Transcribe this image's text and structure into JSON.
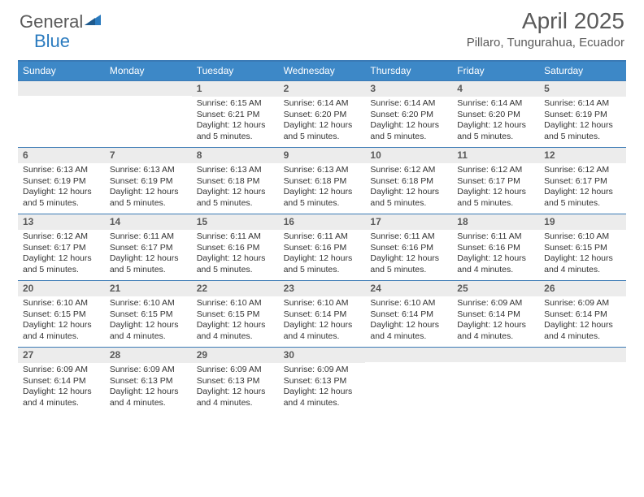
{
  "brand": {
    "part1": "General",
    "part2": "Blue"
  },
  "title": "April 2025",
  "location": "Pillaro, Tungurahua, Ecuador",
  "colors": {
    "header_bg": "#3d88c7",
    "border": "#3b7ab5",
    "daynum_bg": "#ececec",
    "text_muted": "#5a5a5a",
    "brand_blue": "#2b7bbf"
  },
  "weekdays": [
    "Sunday",
    "Monday",
    "Tuesday",
    "Wednesday",
    "Thursday",
    "Friday",
    "Saturday"
  ],
  "weeks": [
    [
      {
        "empty": true
      },
      {
        "empty": true
      },
      {
        "num": "1",
        "sunrise": "Sunrise: 6:15 AM",
        "sunset": "Sunset: 6:21 PM",
        "daylight": "Daylight: 12 hours and 5 minutes."
      },
      {
        "num": "2",
        "sunrise": "Sunrise: 6:14 AM",
        "sunset": "Sunset: 6:20 PM",
        "daylight": "Daylight: 12 hours and 5 minutes."
      },
      {
        "num": "3",
        "sunrise": "Sunrise: 6:14 AM",
        "sunset": "Sunset: 6:20 PM",
        "daylight": "Daylight: 12 hours and 5 minutes."
      },
      {
        "num": "4",
        "sunrise": "Sunrise: 6:14 AM",
        "sunset": "Sunset: 6:20 PM",
        "daylight": "Daylight: 12 hours and 5 minutes."
      },
      {
        "num": "5",
        "sunrise": "Sunrise: 6:14 AM",
        "sunset": "Sunset: 6:19 PM",
        "daylight": "Daylight: 12 hours and 5 minutes."
      }
    ],
    [
      {
        "num": "6",
        "sunrise": "Sunrise: 6:13 AM",
        "sunset": "Sunset: 6:19 PM",
        "daylight": "Daylight: 12 hours and 5 minutes."
      },
      {
        "num": "7",
        "sunrise": "Sunrise: 6:13 AM",
        "sunset": "Sunset: 6:19 PM",
        "daylight": "Daylight: 12 hours and 5 minutes."
      },
      {
        "num": "8",
        "sunrise": "Sunrise: 6:13 AM",
        "sunset": "Sunset: 6:18 PM",
        "daylight": "Daylight: 12 hours and 5 minutes."
      },
      {
        "num": "9",
        "sunrise": "Sunrise: 6:13 AM",
        "sunset": "Sunset: 6:18 PM",
        "daylight": "Daylight: 12 hours and 5 minutes."
      },
      {
        "num": "10",
        "sunrise": "Sunrise: 6:12 AM",
        "sunset": "Sunset: 6:18 PM",
        "daylight": "Daylight: 12 hours and 5 minutes."
      },
      {
        "num": "11",
        "sunrise": "Sunrise: 6:12 AM",
        "sunset": "Sunset: 6:17 PM",
        "daylight": "Daylight: 12 hours and 5 minutes."
      },
      {
        "num": "12",
        "sunrise": "Sunrise: 6:12 AM",
        "sunset": "Sunset: 6:17 PM",
        "daylight": "Daylight: 12 hours and 5 minutes."
      }
    ],
    [
      {
        "num": "13",
        "sunrise": "Sunrise: 6:12 AM",
        "sunset": "Sunset: 6:17 PM",
        "daylight": "Daylight: 12 hours and 5 minutes."
      },
      {
        "num": "14",
        "sunrise": "Sunrise: 6:11 AM",
        "sunset": "Sunset: 6:17 PM",
        "daylight": "Daylight: 12 hours and 5 minutes."
      },
      {
        "num": "15",
        "sunrise": "Sunrise: 6:11 AM",
        "sunset": "Sunset: 6:16 PM",
        "daylight": "Daylight: 12 hours and 5 minutes."
      },
      {
        "num": "16",
        "sunrise": "Sunrise: 6:11 AM",
        "sunset": "Sunset: 6:16 PM",
        "daylight": "Daylight: 12 hours and 5 minutes."
      },
      {
        "num": "17",
        "sunrise": "Sunrise: 6:11 AM",
        "sunset": "Sunset: 6:16 PM",
        "daylight": "Daylight: 12 hours and 5 minutes."
      },
      {
        "num": "18",
        "sunrise": "Sunrise: 6:11 AM",
        "sunset": "Sunset: 6:16 PM",
        "daylight": "Daylight: 12 hours and 4 minutes."
      },
      {
        "num": "19",
        "sunrise": "Sunrise: 6:10 AM",
        "sunset": "Sunset: 6:15 PM",
        "daylight": "Daylight: 12 hours and 4 minutes."
      }
    ],
    [
      {
        "num": "20",
        "sunrise": "Sunrise: 6:10 AM",
        "sunset": "Sunset: 6:15 PM",
        "daylight": "Daylight: 12 hours and 4 minutes."
      },
      {
        "num": "21",
        "sunrise": "Sunrise: 6:10 AM",
        "sunset": "Sunset: 6:15 PM",
        "daylight": "Daylight: 12 hours and 4 minutes."
      },
      {
        "num": "22",
        "sunrise": "Sunrise: 6:10 AM",
        "sunset": "Sunset: 6:15 PM",
        "daylight": "Daylight: 12 hours and 4 minutes."
      },
      {
        "num": "23",
        "sunrise": "Sunrise: 6:10 AM",
        "sunset": "Sunset: 6:14 PM",
        "daylight": "Daylight: 12 hours and 4 minutes."
      },
      {
        "num": "24",
        "sunrise": "Sunrise: 6:10 AM",
        "sunset": "Sunset: 6:14 PM",
        "daylight": "Daylight: 12 hours and 4 minutes."
      },
      {
        "num": "25",
        "sunrise": "Sunrise: 6:09 AM",
        "sunset": "Sunset: 6:14 PM",
        "daylight": "Daylight: 12 hours and 4 minutes."
      },
      {
        "num": "26",
        "sunrise": "Sunrise: 6:09 AM",
        "sunset": "Sunset: 6:14 PM",
        "daylight": "Daylight: 12 hours and 4 minutes."
      }
    ],
    [
      {
        "num": "27",
        "sunrise": "Sunrise: 6:09 AM",
        "sunset": "Sunset: 6:14 PM",
        "daylight": "Daylight: 12 hours and 4 minutes."
      },
      {
        "num": "28",
        "sunrise": "Sunrise: 6:09 AM",
        "sunset": "Sunset: 6:13 PM",
        "daylight": "Daylight: 12 hours and 4 minutes."
      },
      {
        "num": "29",
        "sunrise": "Sunrise: 6:09 AM",
        "sunset": "Sunset: 6:13 PM",
        "daylight": "Daylight: 12 hours and 4 minutes."
      },
      {
        "num": "30",
        "sunrise": "Sunrise: 6:09 AM",
        "sunset": "Sunset: 6:13 PM",
        "daylight": "Daylight: 12 hours and 4 minutes."
      },
      {
        "empty": true
      },
      {
        "empty": true
      },
      {
        "empty": true
      }
    ]
  ]
}
